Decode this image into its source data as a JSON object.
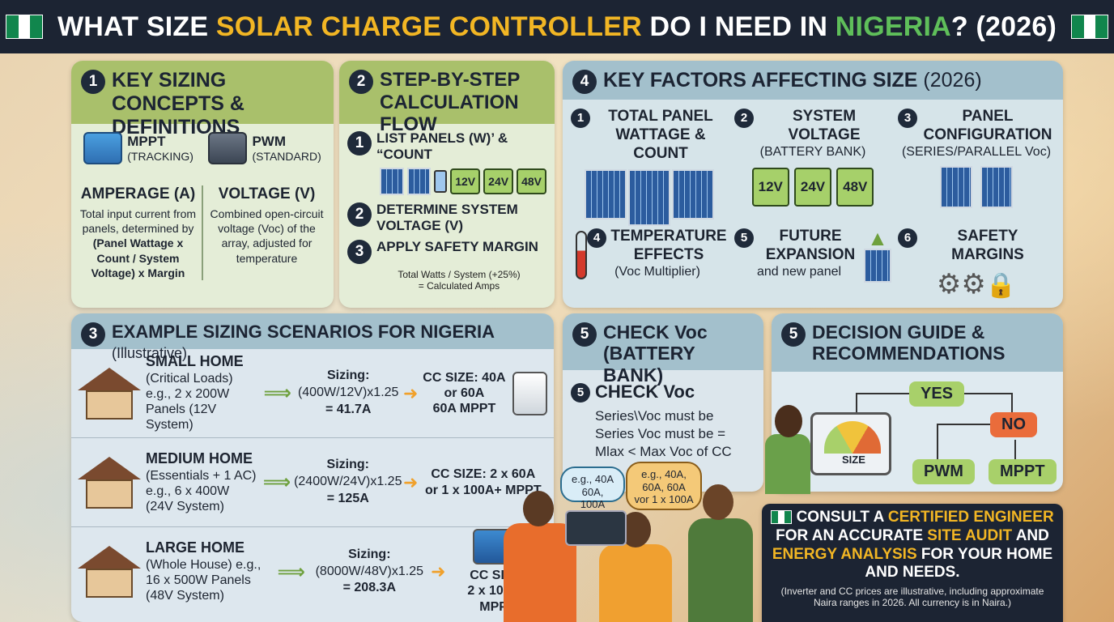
{
  "header": {
    "title_part1": "WHAT SIZE ",
    "title_part2": "SOLAR CHARGE CONTROLLER",
    "title_part3": " DO I NEED IN ",
    "title_part4": "NIGERIA",
    "title_part5": "? (2026)"
  },
  "colors": {
    "header_bg": "#1c2433",
    "accent_yellow": "#f2b624",
    "accent_green": "#5fbf5a",
    "nigeria_green": "#11864d"
  },
  "concepts": {
    "num": "1",
    "title": "KEY SIZING CONCEPTS & DEFINITIONS",
    "mppt_label": "MPPT",
    "mppt_sub": "(TRACKING)",
    "pwm_label": "PWM",
    "pwm_sub": "(STANDARD)",
    "amperage_title": "AMPERAGE (A)",
    "amperage_text_1": "Total input current from panels, determined by ",
    "amperage_text_bold": "(Panel Wattage x Count / System Voltage) x Margin",
    "voltage_title": "VOLTAGE (V)",
    "voltage_text": "Combined open-circuit voltage (Voc) of the array, adjusted for temperature"
  },
  "steps": {
    "num": "2",
    "title": "STEP-BY-STEP CALCULATION FLOW",
    "step1_num": "1",
    "step1": "LIST PANELS (W)’ & “COUNT",
    "batteries": [
      "12V",
      "24V",
      "48V"
    ],
    "step2_num": "2",
    "step2": "DETERMINE SYSTEM VOLTAGE (V)",
    "step3_num": "3",
    "step3": "APPLY SAFETY MARGIN",
    "formula_line1": "Total Watts / System",
    "formula_line2": "= Calculated Amps",
    "margin": "(+25%)"
  },
  "factors": {
    "num": "4",
    "title": "KEY FACTORS AFFECTING SIZE",
    "title_year": " (2026)",
    "items": [
      {
        "num": "1",
        "title": "TOTAL PANEL WATTAGE & COUNT",
        "sub": ""
      },
      {
        "num": "2",
        "title": "SYSTEM VOLTAGE",
        "sub": "(BATTERY BANK)"
      },
      {
        "num": "3",
        "title": "PANEL CONFIGURATION",
        "sub": "(SERIES/PARALLEL Voc)"
      },
      {
        "num": "4",
        "title": "TEMPERATURE EFFECTS",
        "sub": "(Voc Multiplier)"
      },
      {
        "num": "5",
        "title": "FUTURE EXPANSION",
        "sub": "and new panel"
      },
      {
        "num": "6",
        "title": "SAFETY MARGINS",
        "sub": ""
      }
    ],
    "batteries": [
      "12V",
      "24V",
      "48V"
    ]
  },
  "scenarios": {
    "num": "3",
    "title": "EXAMPLE SIZING SCENARIOS FOR NIGERIA",
    "title_sub": " (Illustrative)",
    "items": [
      {
        "name": "SMALL HOME",
        "desc": "(Critical Loads) e.g., 2 x 200W Panels (12V System)",
        "sizing_label": "Sizing:",
        "sizing_formula": "(400W/12V)x1.25",
        "sizing_result": "= 41.7A",
        "cc": "CC SIZE: 40A or 60A",
        "cc_note": "60A MPPT"
      },
      {
        "name": "MEDIUM HOME",
        "desc": "(Essentials + 1 AC) e.g., 6 x 400W (24V System)",
        "sizing_label": "Sizing:",
        "sizing_formula": "(2400W/24V)x1.25",
        "sizing_result": "= 125A",
        "cc": "CC SIZE: 2 x 60A",
        "cc_note": "or 1 x 100A+ MPPT"
      },
      {
        "name": "LARGE HOME",
        "desc": "(Whole House) e.g., 16 x 500W Panels (48V System)",
        "sizing_label": "Sizing:",
        "sizing_formula": "(8000W/48V)x1.25",
        "sizing_result": "= 208.3A",
        "cc": "CC SIZE:",
        "cc_note": "2 x 100A+ MPPT"
      }
    ]
  },
  "voc": {
    "num": "5",
    "title": "CHECK Voc (BATTERY BANK)",
    "sub_num": "5",
    "sub_title": "CHECK Voc",
    "text": "Series\\Voc must be Series Voc must be = Mlax < Max Voc of CC"
  },
  "decision": {
    "num": "5",
    "title": "DECISION GUIDE & RECOMMENDATIONS",
    "yes": "YES",
    "no": "NO",
    "pwm": "PWM",
    "mppt": "MPPT",
    "gauge_label": "SIZE"
  },
  "bubbles": {
    "left": "e.g., 40A 60A, 100A",
    "right": "e.g., 40A, 60A, 60A vor 1 x 100A"
  },
  "consult": {
    "t1": "CONSULT A ",
    "t2": "CERTIFIED ENGINEER",
    "t3": " FOR AN ACCURATE ",
    "t4": "SITE AUDIT",
    "t5": " AND ",
    "t6": "ENERGY ANALYSIS",
    "t7": " FOR YOUR HOME AND NEEDS.",
    "note": "(Inverter and CC prices are illustrative, including approximate Naira ranges in 2026. All currency is in Naira.)"
  }
}
